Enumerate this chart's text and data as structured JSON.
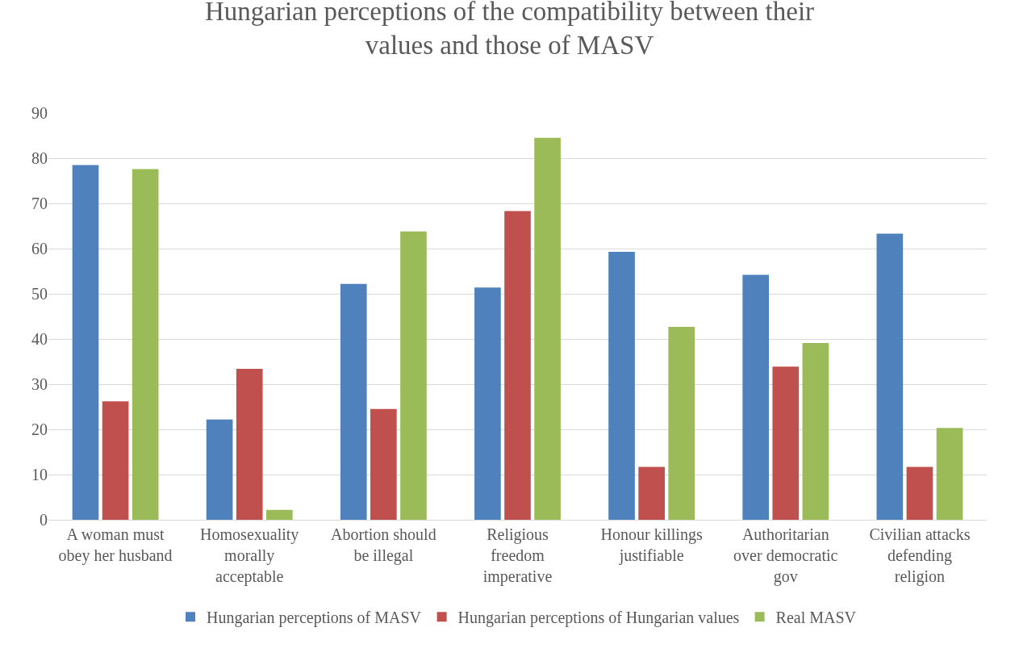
{
  "chart_data": {
    "type": "bar",
    "title": "Hungarian perceptions of the compatibility between their values and those of MASV",
    "categories": [
      "A woman must obey her husband",
      "Homosexuality morally acceptable",
      "Abortion should be illegal",
      "Religious freedom imperative",
      "Honour killings justifiable",
      "Authoritarian over democratic gov",
      "Civilian attacks defending religion"
    ],
    "series": [
      {
        "name": "Hungarian perceptions of MASV",
        "color": "#4f81bd",
        "values": [
          78.5,
          22.2,
          52.2,
          51.4,
          59.3,
          54.2,
          63.3
        ]
      },
      {
        "name": "Hungarian perceptions of Hungarian values",
        "color": "#c0504d",
        "values": [
          26.2,
          33.4,
          24.5,
          68.3,
          11.7,
          33.9,
          11.7
        ]
      },
      {
        "name": "Real MASV",
        "color": "#9bbb59",
        "values": [
          77.6,
          2.2,
          63.8,
          84.5,
          42.7,
          39.1,
          20.3
        ]
      }
    ],
    "ylim": [
      0,
      90
    ],
    "yticks": [
      0,
      10,
      20,
      30,
      40,
      50,
      60,
      70,
      80,
      90
    ],
    "grid": "y",
    "legend": "bottom"
  }
}
